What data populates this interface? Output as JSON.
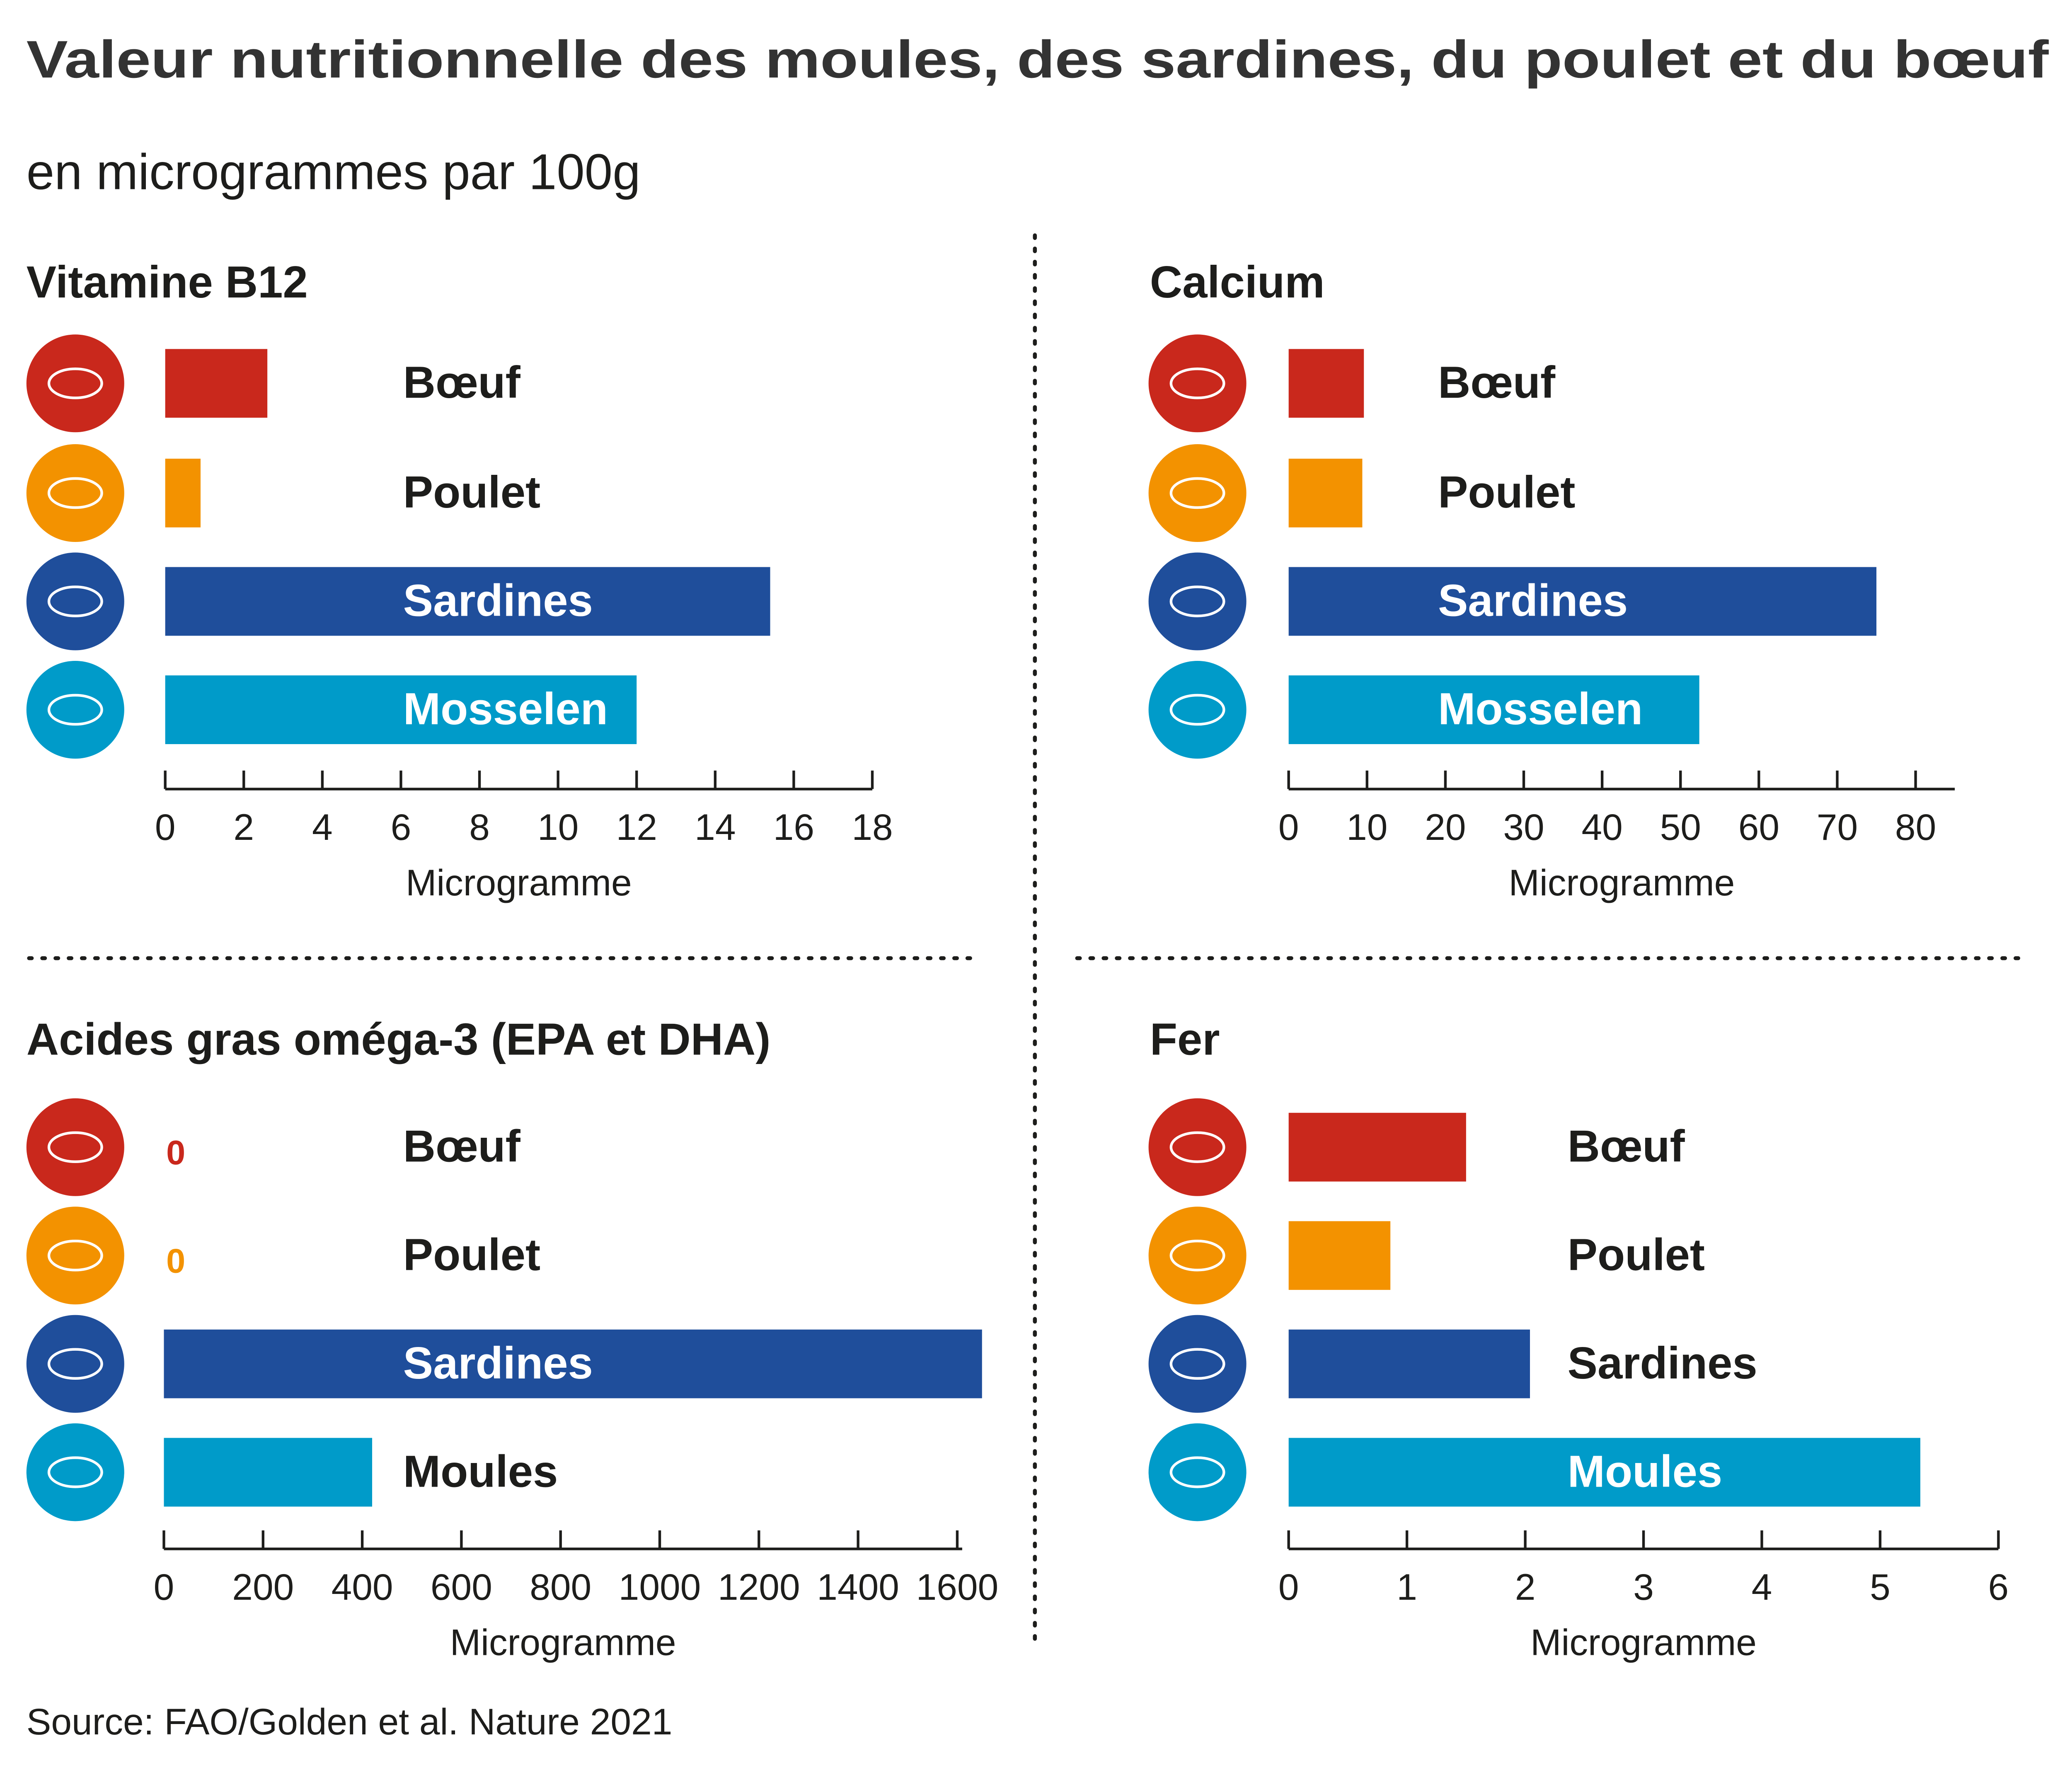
{
  "title": "Valeur nutritionnelle des moules, des sardines, du poulet et du bœuf",
  "subtitle": "en microgrammes par 100g",
  "source": "Source: FAO/Golden et al. Nature 2021",
  "chart_data": [
    {
      "type": "bar",
      "title": "Vitamine B12",
      "categories": [
        "Bœuf",
        "Poulet",
        "Sardines",
        "Mosselen"
      ],
      "values": [
        2.6,
        0.9,
        15.4,
        12.0
      ],
      "colors": [
        "#c9281c",
        "#f39200",
        "#1f4e9b",
        "#009bc9"
      ],
      "xlim": [
        0,
        18
      ],
      "xticks": [
        0,
        2,
        4,
        6,
        8,
        10,
        12,
        14,
        16,
        18
      ],
      "xlabel": "Microgramme"
    },
    {
      "type": "bar",
      "title": "Calcium",
      "categories": [
        "Bœuf",
        "Poulet",
        "Sardines",
        "Mosselen"
      ],
      "values": [
        9.6,
        9.4,
        75,
        52.4
      ],
      "colors": [
        "#c9281c",
        "#f39200",
        "#1f4e9b",
        "#009bc9"
      ],
      "xlim": [
        0,
        85
      ],
      "xticks": [
        0,
        10,
        20,
        30,
        40,
        50,
        60,
        70,
        80
      ],
      "xlabel": "Microgramme"
    },
    {
      "type": "bar",
      "title": "Acides gras oméga-3 (EPA et DHA)",
      "categories": [
        "Bœuf",
        "Poulet",
        "Sardines",
        "Moules"
      ],
      "values": [
        0,
        0,
        1650,
        420
      ],
      "colors": [
        "#c9281c",
        "#f39200",
        "#1f4e9b",
        "#009bc9"
      ],
      "xlim": [
        0,
        1610
      ],
      "xticks": [
        0,
        200,
        400,
        600,
        800,
        1000,
        1200,
        1400,
        1600
      ],
      "xlabel": "Microgramme"
    },
    {
      "type": "bar",
      "title": "Fer",
      "categories": [
        "Bœuf",
        "Poulet",
        "Sardines",
        "Moules"
      ],
      "values": [
        1.5,
        0.86,
        2.04,
        5.34
      ],
      "colors": [
        "#c9281c",
        "#f39200",
        "#1f4e9b",
        "#009bc9"
      ],
      "xlim": [
        0,
        6
      ],
      "xticks": [
        0,
        1,
        2,
        3,
        4,
        5,
        6
      ],
      "xlabel": "Microgramme"
    }
  ]
}
